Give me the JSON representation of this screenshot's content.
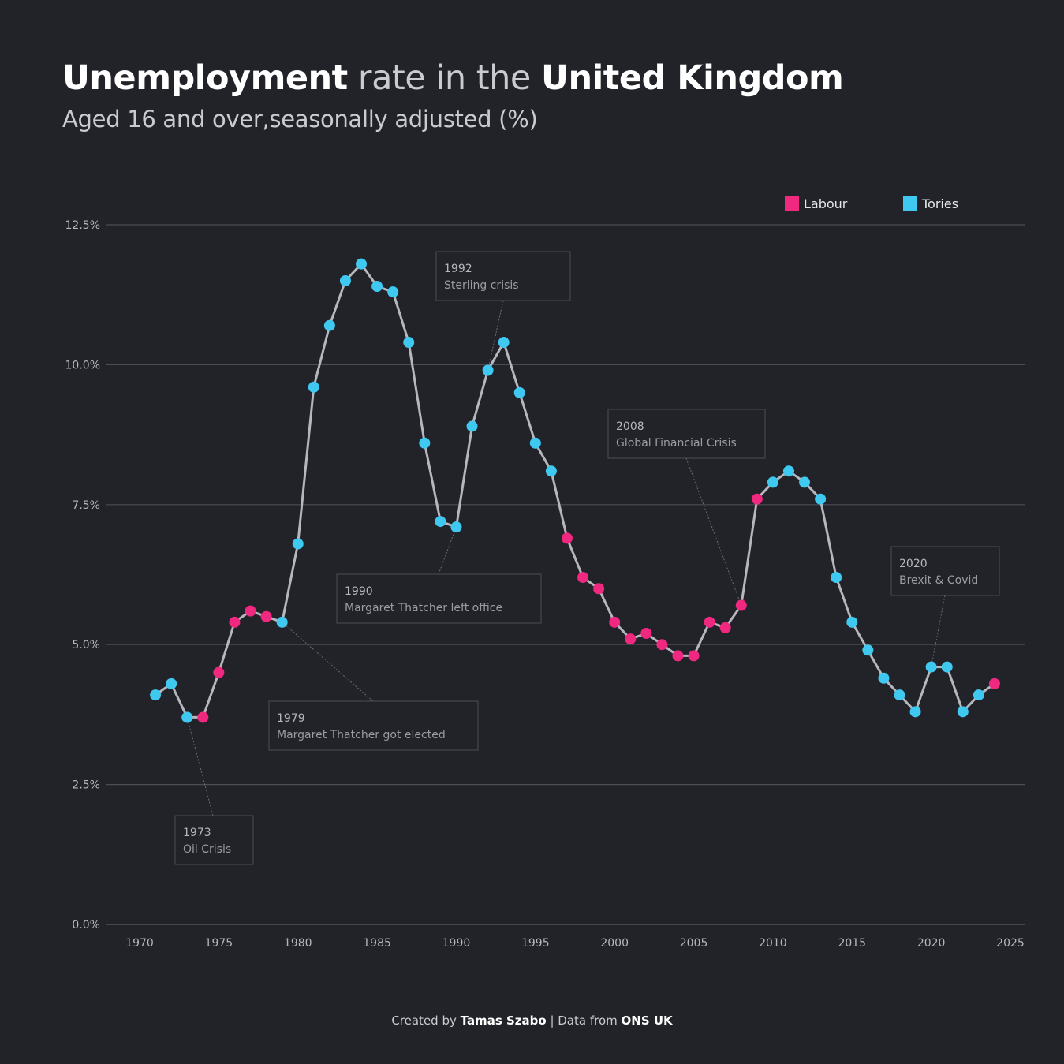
{
  "header": {
    "title_bold_1": "Unemployment",
    "title_mid": " rate in the ",
    "title_bold_2": "United Kingdom",
    "subtitle": "Aged 16 and over,seasonally adjusted (%)"
  },
  "legend": [
    {
      "label": "Labour",
      "color": "#f0287f"
    },
    {
      "label": "Tories",
      "color": "#3fc8f0"
    }
  ],
  "footer": {
    "prefix": "Created by ",
    "author": "Tamas Szabo",
    "mid": " | Data from ",
    "source": "ONS UK"
  },
  "chart_data": {
    "type": "line",
    "title": "Unemployment rate in the United Kingdom",
    "subtitle": "Aged 16 and over,seasonally adjusted (%)",
    "xlim": [
      1970,
      2025
    ],
    "ylim": [
      0,
      12.5
    ],
    "x_ticks": [
      1970,
      1975,
      1980,
      1985,
      1990,
      1995,
      2000,
      2005,
      2010,
      2015,
      2020,
      2025
    ],
    "y_ticks": [
      0,
      2.5,
      5.0,
      7.5,
      10.0,
      12.5
    ],
    "y_tick_labels": [
      "0.0%",
      "2.5%",
      "5.0%",
      "7.5%",
      "10.0%",
      "12.5%"
    ],
    "grid": "horizontal",
    "legend_position": "top-right",
    "line_color": "#b5b7bc",
    "colors": {
      "Labour": "#f0287f",
      "Tories": "#3fc8f0"
    },
    "points": [
      {
        "x": 1971,
        "y": 4.1,
        "party": "Tories"
      },
      {
        "x": 1972,
        "y": 4.3,
        "party": "Tories"
      },
      {
        "x": 1973,
        "y": 3.7,
        "party": "Tories"
      },
      {
        "x": 1974,
        "y": 3.7,
        "party": "Labour"
      },
      {
        "x": 1975,
        "y": 4.5,
        "party": "Labour"
      },
      {
        "x": 1976,
        "y": 5.4,
        "party": "Labour"
      },
      {
        "x": 1977,
        "y": 5.6,
        "party": "Labour"
      },
      {
        "x": 1978,
        "y": 5.5,
        "party": "Labour"
      },
      {
        "x": 1979,
        "y": 5.4,
        "party": "Tories"
      },
      {
        "x": 1980,
        "y": 6.8,
        "party": "Tories"
      },
      {
        "x": 1981,
        "y": 9.6,
        "party": "Tories"
      },
      {
        "x": 1982,
        "y": 10.7,
        "party": "Tories"
      },
      {
        "x": 1983,
        "y": 11.5,
        "party": "Tories"
      },
      {
        "x": 1984,
        "y": 11.8,
        "party": "Tories"
      },
      {
        "x": 1985,
        "y": 11.4,
        "party": "Tories"
      },
      {
        "x": 1986,
        "y": 11.3,
        "party": "Tories"
      },
      {
        "x": 1987,
        "y": 10.4,
        "party": "Tories"
      },
      {
        "x": 1988,
        "y": 8.6,
        "party": "Tories"
      },
      {
        "x": 1989,
        "y": 7.2,
        "party": "Tories"
      },
      {
        "x": 1990,
        "y": 7.1,
        "party": "Tories"
      },
      {
        "x": 1991,
        "y": 8.9,
        "party": "Tories"
      },
      {
        "x": 1992,
        "y": 9.9,
        "party": "Tories"
      },
      {
        "x": 1993,
        "y": 10.4,
        "party": "Tories"
      },
      {
        "x": 1994,
        "y": 9.5,
        "party": "Tories"
      },
      {
        "x": 1995,
        "y": 8.6,
        "party": "Tories"
      },
      {
        "x": 1996,
        "y": 8.1,
        "party": "Tories"
      },
      {
        "x": 1997,
        "y": 6.9,
        "party": "Labour"
      },
      {
        "x": 1998,
        "y": 6.2,
        "party": "Labour"
      },
      {
        "x": 1999,
        "y": 6.0,
        "party": "Labour"
      },
      {
        "x": 2000,
        "y": 5.4,
        "party": "Labour"
      },
      {
        "x": 2001,
        "y": 5.1,
        "party": "Labour"
      },
      {
        "x": 2002,
        "y": 5.2,
        "party": "Labour"
      },
      {
        "x": 2003,
        "y": 5.0,
        "party": "Labour"
      },
      {
        "x": 2004,
        "y": 4.8,
        "party": "Labour"
      },
      {
        "x": 2005,
        "y": 4.8,
        "party": "Labour"
      },
      {
        "x": 2006,
        "y": 5.4,
        "party": "Labour"
      },
      {
        "x": 2007,
        "y": 5.3,
        "party": "Labour"
      },
      {
        "x": 2008,
        "y": 5.7,
        "party": "Labour"
      },
      {
        "x": 2009,
        "y": 7.6,
        "party": "Labour"
      },
      {
        "x": 2010,
        "y": 7.9,
        "party": "Tories"
      },
      {
        "x": 2011,
        "y": 8.1,
        "party": "Tories"
      },
      {
        "x": 2012,
        "y": 7.9,
        "party": "Tories"
      },
      {
        "x": 2013,
        "y": 7.6,
        "party": "Tories"
      },
      {
        "x": 2014,
        "y": 6.2,
        "party": "Tories"
      },
      {
        "x": 2015,
        "y": 5.4,
        "party": "Tories"
      },
      {
        "x": 2016,
        "y": 4.9,
        "party": "Tories"
      },
      {
        "x": 2017,
        "y": 4.4,
        "party": "Tories"
      },
      {
        "x": 2018,
        "y": 4.1,
        "party": "Tories"
      },
      {
        "x": 2019,
        "y": 3.8,
        "party": "Tories"
      },
      {
        "x": 2020,
        "y": 4.6,
        "party": "Tories"
      },
      {
        "x": 2021,
        "y": 4.6,
        "party": "Tories"
      },
      {
        "x": 2022,
        "y": 3.8,
        "party": "Tories"
      },
      {
        "x": 2023,
        "y": 4.1,
        "party": "Tories"
      },
      {
        "x": 2024,
        "y": 4.3,
        "party": "Labour"
      }
    ],
    "annotations": [
      {
        "year": "1973",
        "text": "Oil Crisis",
        "target_x": 1973,
        "target_y": 3.7
      },
      {
        "year": "1979",
        "text": "Margaret Thatcher got elected",
        "target_x": 1979,
        "target_y": 5.4
      },
      {
        "year": "1990",
        "text": "Margaret Thatcher left office",
        "target_x": 1990,
        "target_y": 7.1
      },
      {
        "year": "1992",
        "text": "Sterling crisis",
        "target_x": 1992,
        "target_y": 9.9
      },
      {
        "year": "2008",
        "text": "Global Financial Crisis",
        "target_x": 2008,
        "target_y": 5.7
      },
      {
        "year": "2020",
        "text": "Brexit & Covid",
        "target_x": 2020,
        "target_y": 4.6
      }
    ]
  }
}
